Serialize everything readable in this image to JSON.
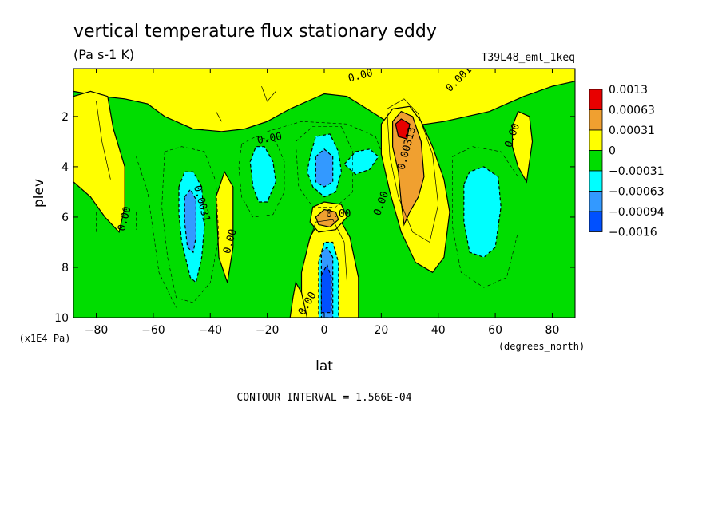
{
  "chart_data": {
    "type": "heatmap",
    "title": "vertical temperature flux stationary eddy",
    "units": "(Pa s-1 K)",
    "experiment": "T39L48_eml_1keq",
    "xlabel": "lat",
    "xunits": "(degrees_north)",
    "ylabel": "plev",
    "yunits": "(x1E4 Pa)",
    "xlim": [
      -88,
      88
    ],
    "ylim": [
      10,
      0.1
    ],
    "xticks": [
      -80,
      -60,
      -40,
      -20,
      0,
      20,
      40,
      60,
      80
    ],
    "yticks": [
      2,
      4,
      6,
      8,
      10
    ],
    "contour_interval_text": "CONTOUR INTERVAL = 1.566E-04",
    "legend": {
      "position": "right",
      "labels": [
        "0.0013",
        "0.00063",
        "0.00031",
        "0",
        "-0.00031",
        "-0.00063",
        "-0.00094",
        "-0.0016"
      ],
      "colors": [
        "#e80000",
        "#f0a030",
        "#ffff00",
        "#00dd00",
        "#00ffff",
        "#3399ff",
        "#0050ff"
      ]
    },
    "background_color": "#00dd00",
    "regions": [
      {
        "level": "0",
        "color": "#ffff00",
        "points": [
          [
            -88,
            0.1
          ],
          [
            88,
            0.1
          ],
          [
            88,
            0.6
          ],
          [
            80,
            0.8
          ],
          [
            70,
            1.2
          ],
          [
            64,
            1.5
          ],
          [
            58,
            1.8
          ],
          [
            50,
            2.0
          ],
          [
            42,
            2.2
          ],
          [
            36,
            2.3
          ],
          [
            28,
            2.4
          ],
          [
            22,
            2.2
          ],
          [
            15,
            1.7
          ],
          [
            8,
            1.2
          ],
          [
            0,
            1.1
          ],
          [
            -6,
            1.4
          ],
          [
            -12,
            1.7
          ],
          [
            -20,
            2.2
          ],
          [
            -28,
            2.5
          ],
          [
            -36,
            2.6
          ],
          [
            -46,
            2.5
          ],
          [
            -56,
            2.0
          ],
          [
            -62,
            1.5
          ],
          [
            -70,
            1.3
          ],
          [
            -78,
            1.2
          ],
          [
            -88,
            1.0
          ]
        ]
      },
      {
        "level": "0",
        "color": "#ffff00",
        "points": [
          [
            -88,
            1.2
          ],
          [
            -82,
            1.0
          ],
          [
            -76,
            1.2
          ],
          [
            -74,
            2.5
          ],
          [
            -70,
            4.0
          ],
          [
            -70,
            5.6
          ],
          [
            -72,
            6.6
          ],
          [
            -77,
            6.0
          ],
          [
            -82,
            5.2
          ],
          [
            -88,
            4.6
          ]
        ]
      },
      {
        "level": "0",
        "color": "#ffff00",
        "points": [
          [
            -38,
            5.2
          ],
          [
            -35,
            4.2
          ],
          [
            -32,
            4.8
          ],
          [
            -32,
            7.2
          ],
          [
            -34,
            8.6
          ],
          [
            -37,
            7.6
          ]
        ]
      },
      {
        "level": "0",
        "color": "#ffff00",
        "points": [
          [
            -8,
            8.2
          ],
          [
            -5,
            6.8
          ],
          [
            -2,
            6.2
          ],
          [
            2,
            6.0
          ],
          [
            6,
            6.2
          ],
          [
            9,
            6.8
          ],
          [
            12,
            8.4
          ],
          [
            12,
            10
          ],
          [
            -8,
            10
          ]
        ]
      },
      {
        "level": "0",
        "color": "#ffff00",
        "points": [
          [
            -4,
            5.6
          ],
          [
            0,
            5.4
          ],
          [
            6,
            5.5
          ],
          [
            8,
            6.0
          ],
          [
            4,
            6.5
          ],
          [
            -2,
            6.6
          ],
          [
            -5,
            6.2
          ]
        ]
      },
      {
        "level": "0",
        "color": "#ffff00",
        "points": [
          [
            20,
            2.3
          ],
          [
            24,
            1.7
          ],
          [
            30,
            1.6
          ],
          [
            34,
            2.2
          ],
          [
            38,
            3.2
          ],
          [
            42,
            4.5
          ],
          [
            44,
            5.8
          ],
          [
            42,
            7.6
          ],
          [
            38,
            8.2
          ],
          [
            32,
            7.8
          ],
          [
            27,
            6.6
          ],
          [
            23,
            5.0
          ],
          [
            20,
            3.5
          ]
        ]
      },
      {
        "level": "0",
        "color": "#ffff00",
        "points": [
          [
            66,
            2.4
          ],
          [
            68,
            1.8
          ],
          [
            72,
            2.0
          ],
          [
            73,
            3.0
          ],
          [
            71,
            4.6
          ],
          [
            68,
            4.0
          ],
          [
            66,
            3.2
          ]
        ]
      },
      {
        "level": "0",
        "color": "#ffff00",
        "points": [
          [
            -12,
            10
          ],
          [
            -11,
            9.2
          ],
          [
            -10,
            8.6
          ],
          [
            -8,
            9.0
          ],
          [
            -6,
            10
          ]
        ]
      },
      {
        "level": "0.00031",
        "color": "#f0a030",
        "points": [
          [
            24,
            2.2
          ],
          [
            27,
            1.8
          ],
          [
            31,
            2.0
          ],
          [
            34,
            3.0
          ],
          [
            35,
            4.4
          ],
          [
            33,
            5.2
          ],
          [
            30,
            5.8
          ],
          [
            28,
            6.3
          ],
          [
            27,
            5.4
          ],
          [
            26,
            4.2
          ],
          [
            24,
            3.2
          ]
        ]
      },
      {
        "level": "0.00031",
        "color": "#f0a030",
        "points": [
          [
            -3,
            6.0
          ],
          [
            0,
            5.7
          ],
          [
            4,
            5.8
          ],
          [
            5,
            6.1
          ],
          [
            2,
            6.4
          ],
          [
            -2,
            6.3
          ]
        ]
      },
      {
        "level": "0.00063",
        "color": "#e80000",
        "points": [
          [
            25,
            2.3
          ],
          [
            27,
            2.1
          ],
          [
            30,
            2.3
          ],
          [
            29,
            2.9
          ],
          [
            26,
            2.8
          ]
        ]
      },
      {
        "level": "-0.00031",
        "color": "#00ffff",
        "points": [
          [
            -51,
            4.8
          ],
          [
            -49,
            4.2
          ],
          [
            -46,
            4.2
          ],
          [
            -43,
            4.8
          ],
          [
            -42,
            6.3
          ],
          [
            -43,
            7.6
          ],
          [
            -45,
            8.6
          ],
          [
            -47,
            8.4
          ],
          [
            -50,
            7.0
          ],
          [
            -51,
            5.9
          ]
        ]
      },
      {
        "level": "-0.00031",
        "color": "#00ffff",
        "points": [
          [
            -26,
            3.8
          ],
          [
            -24,
            3.2
          ],
          [
            -21,
            3.2
          ],
          [
            -18,
            3.8
          ],
          [
            -17,
            4.6
          ],
          [
            -20,
            5.4
          ],
          [
            -23,
            5.4
          ],
          [
            -25,
            4.8
          ]
        ]
      },
      {
        "level": "-0.00031",
        "color": "#00ffff",
        "points": [
          [
            -5,
            3.6
          ],
          [
            -3,
            2.8
          ],
          [
            2,
            2.7
          ],
          [
            5,
            3.4
          ],
          [
            6,
            4.2
          ],
          [
            4,
            5.0
          ],
          [
            0,
            5.2
          ],
          [
            -4,
            4.8
          ],
          [
            -6,
            4.2
          ]
        ]
      },
      {
        "level": "-0.00031",
        "color": "#00ffff",
        "points": [
          [
            7,
            3.9
          ],
          [
            11,
            3.4
          ],
          [
            16,
            3.3
          ],
          [
            19,
            3.6
          ],
          [
            16,
            4.1
          ],
          [
            11,
            4.3
          ]
        ]
      },
      {
        "level": "-0.00031",
        "color": "#00ffff",
        "points": [
          [
            49,
            4.7
          ],
          [
            51,
            4.2
          ],
          [
            56,
            4.0
          ],
          [
            61,
            4.4
          ],
          [
            62,
            5.6
          ],
          [
            60,
            7.2
          ],
          [
            56,
            7.6
          ],
          [
            51,
            7.4
          ],
          [
            49,
            6.2
          ]
        ]
      },
      {
        "level": "-0.00031",
        "color": "#00ffff",
        "points": [
          [
            -2,
            7.8
          ],
          [
            0,
            7.0
          ],
          [
            3,
            7.0
          ],
          [
            5,
            7.8
          ],
          [
            5,
            10
          ],
          [
            -2,
            10
          ]
        ]
      },
      {
        "level": "-0.00063",
        "color": "#3399ff",
        "points": [
          [
            -49,
            5.2
          ],
          [
            -47,
            4.9
          ],
          [
            -45,
            5.3
          ],
          [
            -45,
            6.8
          ],
          [
            -46,
            7.4
          ],
          [
            -48,
            7.2
          ],
          [
            -49,
            6.2
          ]
        ]
      },
      {
        "level": "-0.00063",
        "color": "#3399ff",
        "points": [
          [
            -3,
            3.6
          ],
          [
            0,
            3.3
          ],
          [
            3,
            3.6
          ],
          [
            3,
            4.6
          ],
          [
            0,
            4.8
          ],
          [
            -3,
            4.6
          ]
        ]
      },
      {
        "level": "-0.00063",
        "color": "#3399ff",
        "points": [
          [
            -1,
            7.4
          ],
          [
            1,
            7.2
          ],
          [
            3,
            7.6
          ],
          [
            3,
            10
          ],
          [
            -1,
            10
          ]
        ]
      },
      {
        "level": "-0.00094",
        "color": "#0050ff",
        "points": [
          [
            -1,
            8.3
          ],
          [
            1,
            7.9
          ],
          [
            2.5,
            8.4
          ],
          [
            2.5,
            9.8
          ],
          [
            -1,
            9.8
          ]
        ]
      }
    ],
    "contour_lines": [
      {
        "style": "dashed",
        "points": [
          [
            -56,
            3.4
          ],
          [
            -50,
            3.2
          ],
          [
            -42,
            3.4
          ],
          [
            -38,
            4.6
          ],
          [
            -37,
            6.8
          ],
          [
            -40,
            8.6
          ],
          [
            -46,
            9.4
          ],
          [
            -52,
            9.2
          ],
          [
            -55,
            7.6
          ],
          [
            -57,
            5.6
          ],
          [
            -56,
            3.4
          ]
        ]
      },
      {
        "style": "dashed",
        "points": [
          [
            -29,
            3.1
          ],
          [
            -24,
            2.8
          ],
          [
            -17,
            3.0
          ],
          [
            -14,
            3.8
          ],
          [
            -14,
            5.0
          ],
          [
            -18,
            5.9
          ],
          [
            -25,
            6.0
          ],
          [
            -29,
            5.2
          ],
          [
            -30,
            4.0
          ],
          [
            -29,
            3.1
          ]
        ]
      },
      {
        "style": "dashed",
        "points": [
          [
            -66,
            3.6
          ],
          [
            -62,
            5.0
          ],
          [
            -60,
            6.6
          ],
          [
            -58,
            8.2
          ],
          [
            -52,
            9.6
          ]
        ]
      },
      {
        "style": "dashed",
        "points": [
          [
            -10,
            3.0
          ],
          [
            -4,
            2.4
          ],
          [
            6,
            2.4
          ],
          [
            10,
            3.4
          ],
          [
            10,
            5.0
          ],
          [
            4,
            5.6
          ],
          [
            -4,
            5.6
          ],
          [
            -9,
            4.8
          ],
          [
            -10,
            3.0
          ]
        ]
      },
      {
        "style": "dashed",
        "points": [
          [
            45,
            3.6
          ],
          [
            52,
            3.2
          ],
          [
            62,
            3.4
          ],
          [
            68,
            4.4
          ],
          [
            68,
            6.6
          ],
          [
            64,
            8.4
          ],
          [
            56,
            8.8
          ],
          [
            48,
            8.2
          ],
          [
            45,
            6.4
          ],
          [
            45,
            3.6
          ]
        ]
      },
      {
        "style": "dashed",
        "points": [
          [
            -20,
            2.6
          ],
          [
            -8,
            2.2
          ],
          [
            8,
            2.3
          ],
          [
            18,
            2.8
          ],
          [
            20,
            3.4
          ]
        ]
      },
      {
        "style": "dashed",
        "points": [
          [
            -80,
            5.8
          ],
          [
            -80,
            6.6
          ]
        ]
      },
      {
        "style": "dashed",
        "points": [
          [
            -66,
            5.8
          ],
          [
            -66,
            6.5
          ]
        ]
      },
      {
        "style": "solid",
        "points": [
          [
            -80,
            1.4
          ],
          [
            -78,
            3.0
          ],
          [
            -75,
            4.5
          ]
        ]
      },
      {
        "style": "solid",
        "points": [
          [
            -22,
            0.8
          ],
          [
            -20,
            1.4
          ],
          [
            -17,
            1.0
          ]
        ]
      },
      {
        "style": "solid",
        "points": [
          [
            -38,
            1.8
          ],
          [
            -36,
            2.2
          ]
        ]
      },
      {
        "style": "solid",
        "points": [
          [
            22,
            1.7
          ],
          [
            28,
            1.3
          ],
          [
            33,
            1.9
          ],
          [
            38,
            3.5
          ],
          [
            40,
            5.5
          ],
          [
            37,
            7.0
          ],
          [
            31,
            6.6
          ],
          [
            26,
            5.2
          ],
          [
            23,
            3.6
          ],
          [
            22,
            1.7
          ]
        ]
      },
      {
        "style": "solid",
        "points": [
          [
            -6,
            7.2
          ],
          [
            -3,
            6.2
          ],
          [
            3,
            6.1
          ],
          [
            7,
            7.0
          ],
          [
            8,
            8.6
          ]
        ]
      }
    ],
    "contour_labels": [
      {
        "text": "0.00",
        "x": 13,
        "y": 0.5,
        "rotate": -15
      },
      {
        "text": "0.001",
        "x": 48,
        "y": 0.6,
        "rotate": -45
      },
      {
        "text": "0.00",
        "x": -19,
        "y": 3.0,
        "rotate": -10
      },
      {
        "text": "0.00",
        "x": 67,
        "y": 2.8,
        "rotate": -70
      },
      {
        "text": "0.00313",
        "x": 30,
        "y": 3.3,
        "rotate": -75
      },
      {
        "text": "0.00",
        "x": 21,
        "y": 5.5,
        "rotate": -70
      },
      {
        "text": "0.00",
        "x": 5,
        "y": 6.0,
        "rotate": 0
      },
      {
        "text": "0.00",
        "x": -69,
        "y": 6.1,
        "rotate": -75
      },
      {
        "text": "0.0031",
        "x": -44,
        "y": 5.5,
        "rotate": 75
      },
      {
        "text": "0.00",
        "x": -32,
        "y": 7.0,
        "rotate": -75
      },
      {
        "text": "0.00",
        "x": -5,
        "y": 9.5,
        "rotate": -60
      }
    ]
  }
}
